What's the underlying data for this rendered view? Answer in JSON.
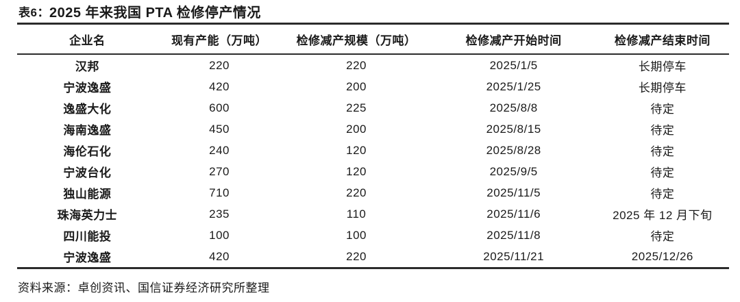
{
  "title": {
    "prefix": "表6：",
    "text": "2025 年来我国 PTA 检修停产情况"
  },
  "table": {
    "headers": [
      "企业名",
      "现有产能（万吨）",
      "检修减产规模（万吨）",
      "检修减产开始时间",
      "检修减产结束时间"
    ],
    "rows": [
      {
        "company": "汉邦",
        "capacity": "220",
        "reduction": "220",
        "start": "2025/1/5",
        "end": "长期停车"
      },
      {
        "company": "宁波逸盛",
        "capacity": "420",
        "reduction": "200",
        "start": "2025/1/25",
        "end": "长期停车"
      },
      {
        "company": "逸盛大化",
        "capacity": "600",
        "reduction": "225",
        "start": "2025/8/8",
        "end": "待定"
      },
      {
        "company": "海南逸盛",
        "capacity": "450",
        "reduction": "200",
        "start": "2025/8/15",
        "end": "待定"
      },
      {
        "company": "海伦石化",
        "capacity": "240",
        "reduction": "120",
        "start": "2025/8/28",
        "end": "待定"
      },
      {
        "company": "宁波台化",
        "capacity": "270",
        "reduction": "120",
        "start": "2025/9/5",
        "end": "待定"
      },
      {
        "company": "独山能源",
        "capacity": "710",
        "reduction": "220",
        "start": "2025/11/5",
        "end": "待定"
      },
      {
        "company": "珠海英力士",
        "capacity": "235",
        "reduction": "110",
        "start": "2025/11/6",
        "end": "2025 年 12 月下旬"
      },
      {
        "company": "四川能投",
        "capacity": "100",
        "reduction": "100",
        "start": "2025/11/8",
        "end": "待定"
      },
      {
        "company": "宁波逸盛",
        "capacity": "420",
        "reduction": "220",
        "start": "2025/11/21",
        "end": "2025/12/26"
      }
    ]
  },
  "footer": {
    "source": "资料来源：卓创资讯、国信证券经济研究所整理"
  },
  "colors": {
    "text": "#1a1a1a",
    "rule": "#2b2b2b",
    "background": "#ffffff"
  }
}
